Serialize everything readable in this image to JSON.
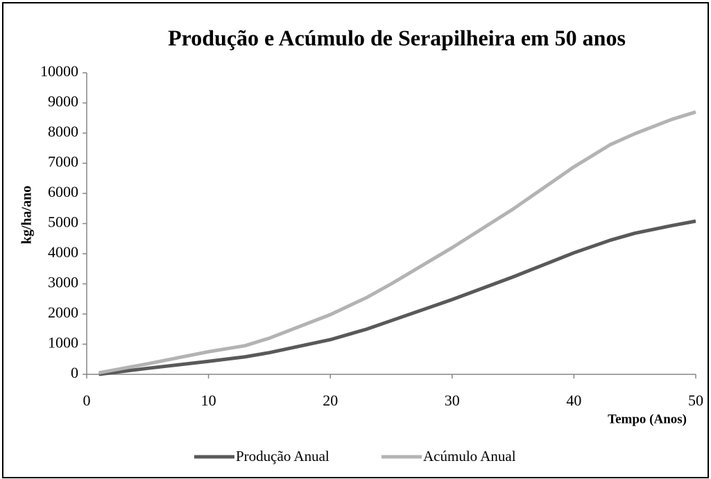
{
  "chart_data": {
    "type": "line",
    "title": "Produção e Acúmulo de Serapilheira em 50 anos",
    "y_label": "kg/ha/ano",
    "x_label": "Tempo (Anos)",
    "x": [
      1,
      5,
      10,
      13,
      15,
      20,
      23,
      25,
      30,
      35,
      40,
      43,
      45,
      48,
      50
    ],
    "series": [
      {
        "name": "Produção Anual",
        "color": "#595959",
        "values": [
          0,
          200,
          430,
          580,
          720,
          1150,
          1500,
          1780,
          2480,
          3230,
          4030,
          4450,
          4680,
          4930,
          5080
        ]
      },
      {
        "name": "Acúmulo Anual",
        "color": "#b3b3b3",
        "values": [
          50,
          350,
          750,
          950,
          1200,
          1980,
          2550,
          3000,
          4200,
          5480,
          6880,
          7620,
          7980,
          8450,
          8700
        ]
      }
    ],
    "xlim": [
      0,
      50
    ],
    "xticks": [
      0,
      10,
      20,
      30,
      40,
      50
    ],
    "ylim": [
      0,
      10000
    ],
    "yticks": [
      0,
      1000,
      2000,
      3000,
      4000,
      5000,
      6000,
      7000,
      8000,
      9000,
      10000
    ],
    "legend": "bottom"
  }
}
